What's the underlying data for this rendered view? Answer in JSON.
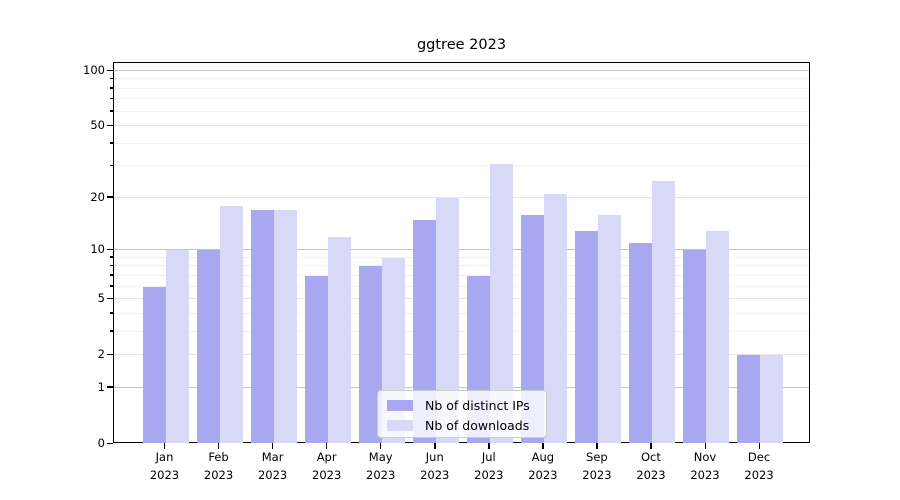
{
  "chart_data": {
    "type": "bar",
    "title": "ggtree 2023",
    "categories": [
      "Jan",
      "Feb",
      "Mar",
      "Apr",
      "May",
      "Jun",
      "Jul",
      "Aug",
      "Sep",
      "Oct",
      "Nov",
      "Dec"
    ],
    "category_year": "2023",
    "series": [
      {
        "name": "Nb of distinct IPs",
        "color": "#a8a8f0",
        "values": [
          6,
          10,
          17,
          7,
          8,
          15,
          7,
          16,
          13,
          11,
          10,
          2
        ]
      },
      {
        "name": "Nb of downloads",
        "color": "#d8d8f7",
        "values": [
          10,
          18,
          17,
          12,
          9,
          20,
          31,
          21,
          16,
          25,
          13,
          2
        ]
      }
    ],
    "yscale": "log1p",
    "ylim": [
      0,
      100
    ],
    "ytick_labels": [
      "0",
      "1",
      "2",
      "5",
      "10",
      "20",
      "50",
      "100"
    ],
    "ytick_values": [
      0,
      1,
      2,
      5,
      10,
      20,
      50,
      100
    ],
    "minor_gridline_values": [
      3,
      4,
      6,
      7,
      8,
      9,
      30,
      40,
      60,
      70,
      80,
      90
    ],
    "grid": true,
    "legend_position": "lower center",
    "colors": {
      "major_power_gridline": "#c4c4c4",
      "major_gridline": "#e4e4e4",
      "minor_gridline": "#f1f1f1",
      "axis": "#000000",
      "legend_border": "#cccccc"
    }
  }
}
